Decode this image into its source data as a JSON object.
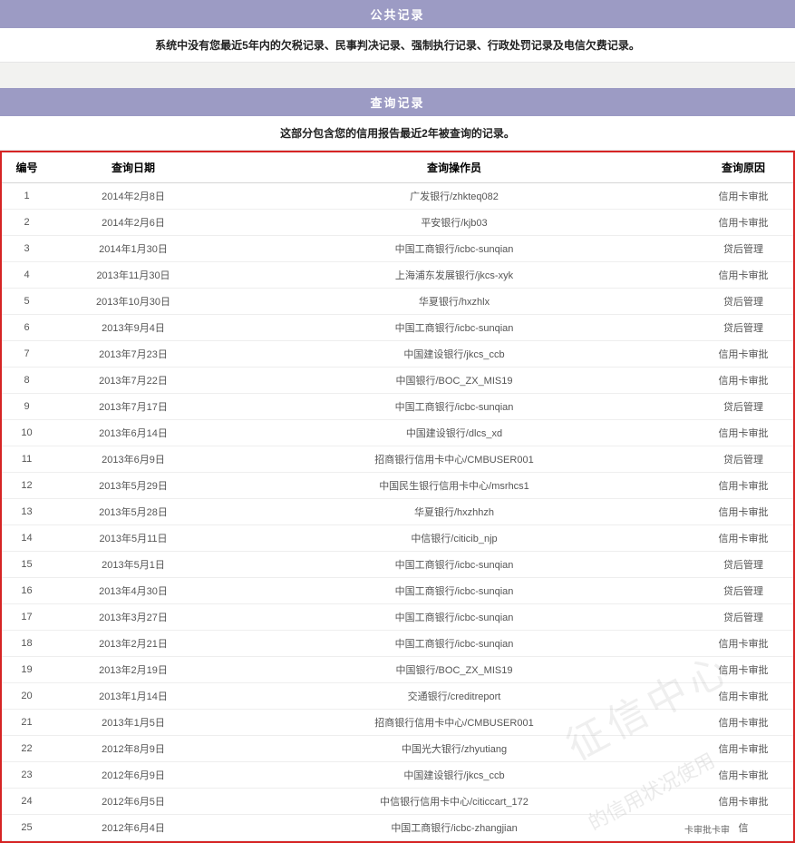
{
  "section1": {
    "header": "公共记录",
    "subtext": "系统中没有您最近5年内的欠税记录、民事判决记录、强制执行记录、行政处罚记录及电信欠费记录。"
  },
  "section2": {
    "header": "查询记录",
    "subtext": "这部分包含您的信用报告最近2年被查询的记录。"
  },
  "table": {
    "columns": {
      "idx": "编号",
      "date": "查询日期",
      "operator": "查询操作员",
      "reason": "查询原因"
    },
    "rows": [
      {
        "idx": "1",
        "date": "2014年2月8日",
        "op": "广发银行/zhkteq082",
        "reason": "信用卡审批"
      },
      {
        "idx": "2",
        "date": "2014年2月6日",
        "op": "平安银行/kjb03",
        "reason": "信用卡审批"
      },
      {
        "idx": "3",
        "date": "2014年1月30日",
        "op": "中国工商银行/icbc-sunqian",
        "reason": "贷后管理"
      },
      {
        "idx": "4",
        "date": "2013年11月30日",
        "op": "上海浦东发展银行/jkcs-xyk",
        "reason": "信用卡审批"
      },
      {
        "idx": "5",
        "date": "2013年10月30日",
        "op": "华夏银行/hxzhlx",
        "reason": "贷后管理"
      },
      {
        "idx": "6",
        "date": "2013年9月4日",
        "op": "中国工商银行/icbc-sunqian",
        "reason": "贷后管理"
      },
      {
        "idx": "7",
        "date": "2013年7月23日",
        "op": "中国建设银行/jkcs_ccb",
        "reason": "信用卡审批"
      },
      {
        "idx": "8",
        "date": "2013年7月22日",
        "op": "中国银行/BOC_ZX_MIS19",
        "reason": "信用卡审批"
      },
      {
        "idx": "9",
        "date": "2013年7月17日",
        "op": "中国工商银行/icbc-sunqian",
        "reason": "贷后管理"
      },
      {
        "idx": "10",
        "date": "2013年6月14日",
        "op": "中国建设银行/dlcs_xd",
        "reason": "信用卡审批"
      },
      {
        "idx": "11",
        "date": "2013年6月9日",
        "op": "招商银行信用卡中心/CMBUSER001",
        "reason": "贷后管理"
      },
      {
        "idx": "12",
        "date": "2013年5月29日",
        "op": "中国民生银行信用卡中心/msrhcs1",
        "reason": "信用卡审批"
      },
      {
        "idx": "13",
        "date": "2013年5月28日",
        "op": "华夏银行/hxzhhzh",
        "reason": "信用卡审批"
      },
      {
        "idx": "14",
        "date": "2013年5月11日",
        "op": "中信银行/citicib_njp",
        "reason": "信用卡审批"
      },
      {
        "idx": "15",
        "date": "2013年5月1日",
        "op": "中国工商银行/icbc-sunqian",
        "reason": "贷后管理"
      },
      {
        "idx": "16",
        "date": "2013年4月30日",
        "op": "中国工商银行/icbc-sunqian",
        "reason": "贷后管理"
      },
      {
        "idx": "17",
        "date": "2013年3月27日",
        "op": "中国工商银行/icbc-sunqian",
        "reason": "贷后管理"
      },
      {
        "idx": "18",
        "date": "2013年2月21日",
        "op": "中国工商银行/icbc-sunqian",
        "reason": "信用卡审批"
      },
      {
        "idx": "19",
        "date": "2013年2月19日",
        "op": "中国银行/BOC_ZX_MIS19",
        "reason": "信用卡审批"
      },
      {
        "idx": "20",
        "date": "2013年1月14日",
        "op": "交通银行/creditreport",
        "reason": "信用卡审批"
      },
      {
        "idx": "21",
        "date": "2013年1月5日",
        "op": "招商银行信用卡中心/CMBUSER001",
        "reason": "信用卡审批"
      },
      {
        "idx": "22",
        "date": "2012年8月9日",
        "op": "中国光大银行/zhyutiang",
        "reason": "信用卡审批"
      },
      {
        "idx": "23",
        "date": "2012年6月9日",
        "op": "中国建设银行/jkcs_ccb",
        "reason": "信用卡审批"
      },
      {
        "idx": "24",
        "date": "2012年6月5日",
        "op": "中信银行信用卡中心/citiccart_172",
        "reason": "信用卡审批"
      },
      {
        "idx": "25",
        "date": "2012年6月4日",
        "op": "中国工商银行/icbc-zhangjian",
        "reason": "信"
      }
    ]
  },
  "watermark": {
    "main": "征信中心",
    "sub": "的信用状况使用"
  },
  "footer_note": "卡审批卡审",
  "colors": {
    "header_bg": "#9c9bc4",
    "border_red": "#d62424",
    "row_border": "#eeeeee",
    "text": "#333333"
  }
}
